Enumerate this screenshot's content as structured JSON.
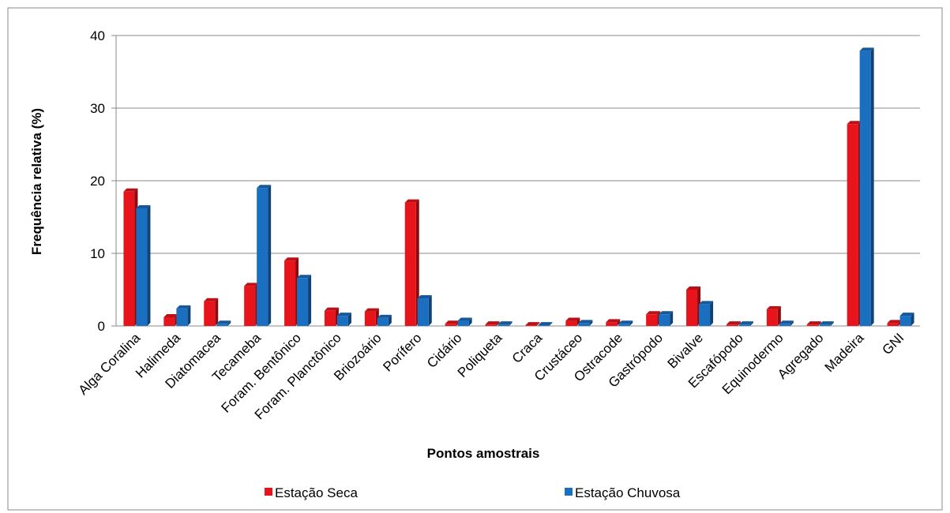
{
  "chart_data": {
    "type": "bar",
    "y_label": "Frequência relativa (%)",
    "x_label": "Pontos amostrais",
    "categories": [
      "Alga Coralina",
      "Halimeda",
      "Diatomacea",
      "Tecameba",
      "Foram. Bentônico",
      "Foram. Planctônico",
      "Briozoário",
      "Porífero",
      "Cidário",
      "Poliqueta",
      "Craca",
      "Crustáceo",
      "Ostracode",
      "Gastrópodo",
      "Bivalve",
      "Escafópodo",
      "Equinodermo",
      "Agregado",
      "Madeira",
      "GNI"
    ],
    "series": [
      {
        "name": "Estação Seca",
        "color": "#e8141b",
        "values": [
          18.5,
          1.2,
          3.4,
          5.5,
          9.0,
          2.1,
          2.0,
          17.0,
          0.3,
          0.2,
          0.1,
          0.7,
          0.5,
          1.6,
          5.0,
          0.2,
          2.3,
          0.2,
          27.8,
          0.4
        ]
      },
      {
        "name": "Estação Chuvosa",
        "color": "#1a6fc0",
        "values": [
          16.2,
          2.4,
          0.3,
          19.0,
          6.6,
          1.4,
          1.1,
          3.8,
          0.7,
          0.2,
          0.1,
          0.4,
          0.3,
          1.6,
          3.0,
          0.2,
          0.3,
          0.2,
          37.9,
          1.4
        ]
      }
    ],
    "ylim": [
      0,
      40
    ],
    "yticks": [
      0,
      10,
      20,
      30,
      40
    ],
    "grid": true
  }
}
